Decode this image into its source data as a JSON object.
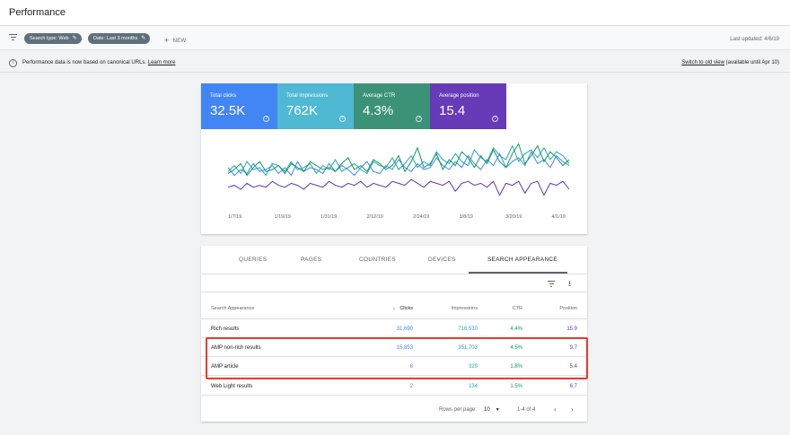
{
  "header": {
    "title": "Performance"
  },
  "filters": {
    "chips": [
      "Search type: Web",
      "Date: Last 3 months"
    ],
    "new_label": "NEW",
    "last_updated": "Last updated: 4/6/19"
  },
  "info": {
    "text": "Performance data is now based on canonical URLs.",
    "learn_more": "Learn more",
    "switch_link": "Switch to old view",
    "available": "(available until Apr 10)"
  },
  "metrics": [
    {
      "label": "Total clicks",
      "value": "32.5K",
      "color": "#4285f4"
    },
    {
      "label": "Total impressions",
      "value": "762K",
      "color": "#4fb8d2"
    },
    {
      "label": "Average CTR",
      "value": "4.3%",
      "color": "#3b9278"
    },
    {
      "label": "Average position",
      "value": "15.4",
      "color": "#673ab7"
    }
  ],
  "chart_data": {
    "type": "line",
    "x_ticks": [
      "1/7/19",
      "1/19/19",
      "1/31/19",
      "2/12/19",
      "2/24/19",
      "3/8/19",
      "3/20/19",
      "4/1/19"
    ],
    "series": [
      {
        "color": "#4285f4",
        "values": [
          1.6,
          1.2,
          1.5,
          1.3,
          1.8,
          1.4,
          1.5,
          1.7,
          1.3,
          1.6,
          1.2,
          1.9,
          1.4,
          1.6,
          1.5,
          1.3,
          1.8,
          1.4,
          1.7,
          1.5,
          1.2,
          1.6,
          1.9,
          1.4,
          1.3,
          1.7,
          1.5,
          2.0,
          1.6,
          1.4,
          1.8,
          1.5,
          1.6,
          2.1,
          1.7,
          1.5,
          1.9,
          1.6,
          2.2,
          1.8,
          1.5,
          2.0,
          1.7,
          2.3,
          1.6,
          1.9,
          2.1,
          1.7,
          2.4,
          1.8,
          2.0,
          1.6,
          2.2,
          1.9,
          1.7
        ]
      },
      {
        "color": "#29a3b8",
        "values": [
          1.4,
          1.7,
          1.3,
          1.9,
          1.5,
          1.6,
          1.2,
          1.8,
          1.7,
          1.4,
          1.9,
          1.5,
          1.6,
          1.8,
          1.3,
          1.7,
          1.5,
          2.0,
          1.4,
          1.6,
          1.8,
          1.5,
          1.3,
          1.9,
          1.7,
          1.6,
          2.1,
          1.5,
          1.8,
          2.2,
          1.6,
          1.9,
          1.7,
          2.4,
          2.0,
          1.8,
          2.3,
          1.9,
          1.7,
          2.5,
          2.1,
          1.9,
          2.6,
          2.2,
          2.0,
          2.7,
          1.9,
          2.3,
          2.5,
          2.1,
          2.6,
          2.0,
          2.4,
          2.2,
          1.8
        ]
      },
      {
        "color": "#0f9d58",
        "values": [
          1.3,
          1.5,
          1.8,
          1.2,
          1.6,
          1.9,
          1.4,
          1.5,
          1.7,
          1.3,
          1.8,
          1.6,
          1.4,
          1.9,
          1.7,
          1.5,
          1.6,
          1.4,
          1.8,
          2.1,
          1.5,
          1.7,
          1.4,
          2.0,
          1.8,
          1.5,
          1.7,
          2.2,
          1.4,
          1.9,
          2.6,
          1.6,
          1.8,
          2.3,
          1.5,
          2.0,
          1.7,
          2.4,
          2.1,
          1.6,
          2.2,
          1.8,
          2.5,
          1.9,
          1.6,
          2.3,
          2.8,
          1.8,
          2.2,
          2.7,
          1.9,
          2.4,
          2.1,
          1.7,
          2.0
        ]
      },
      {
        "color": "#5e35b1",
        "values": [
          0.6,
          0.7,
          0.5,
          0.8,
          0.6,
          0.7,
          0.6,
          0.9,
          0.7,
          0.6,
          0.8,
          0.7,
          0.5,
          0.8,
          0.7,
          0.6,
          0.9,
          0.7,
          0.6,
          0.8,
          0.7,
          0.9,
          0.6,
          0.8,
          0.7,
          0.6,
          0.9,
          0.8,
          0.7,
          1.0,
          0.8,
          0.6,
          0.9,
          0.8,
          0.7,
          0.9,
          0.4,
          0.8,
          0.9,
          0.7,
          0.8,
          0.6,
          0.9,
          0.2,
          0.8,
          0.7,
          0.9,
          0.3,
          0.8,
          0.9,
          0.2,
          0.8,
          0.7,
          0.9,
          0.5
        ]
      }
    ]
  },
  "tabs": [
    "QUERIES",
    "PAGES",
    "COUNTRIES",
    "DEVICES",
    "SEARCH APPEARANCE"
  ],
  "table": {
    "headers": {
      "name": "Search Appearance",
      "clicks": "Clicks",
      "impressions": "Impressions",
      "ctr": "CTR",
      "position": "Position"
    },
    "rows": [
      {
        "name": "Rich results",
        "clicks": "31,690",
        "impressions": "716,530",
        "ctr": "4.4%",
        "position": "15.9"
      },
      {
        "name": "AMP non-rich results",
        "clicks": "15,853",
        "impressions": "351,703",
        "ctr": "4.5%",
        "position": "9.7"
      },
      {
        "name": "AMP article",
        "clicks": "6",
        "impressions": "329",
        "ctr": "1.8%",
        "position": "5.4"
      },
      {
        "name": "Web Light results",
        "clicks": "2",
        "impressions": "134",
        "ctr": "1.5%",
        "position": "6.7"
      }
    ]
  },
  "pagination": {
    "rows_label": "Rows per page:",
    "rows_value": "10",
    "range": "1-4 of 4"
  },
  "icons": {
    "filter": "filter-icon",
    "edit": "pencil-icon",
    "add": "plus-icon",
    "info": "info-icon",
    "help": "help-icon",
    "download": "download-icon",
    "sort": "arrow-down-icon",
    "prev": "chevron-left-icon",
    "next": "chevron-right-icon"
  }
}
